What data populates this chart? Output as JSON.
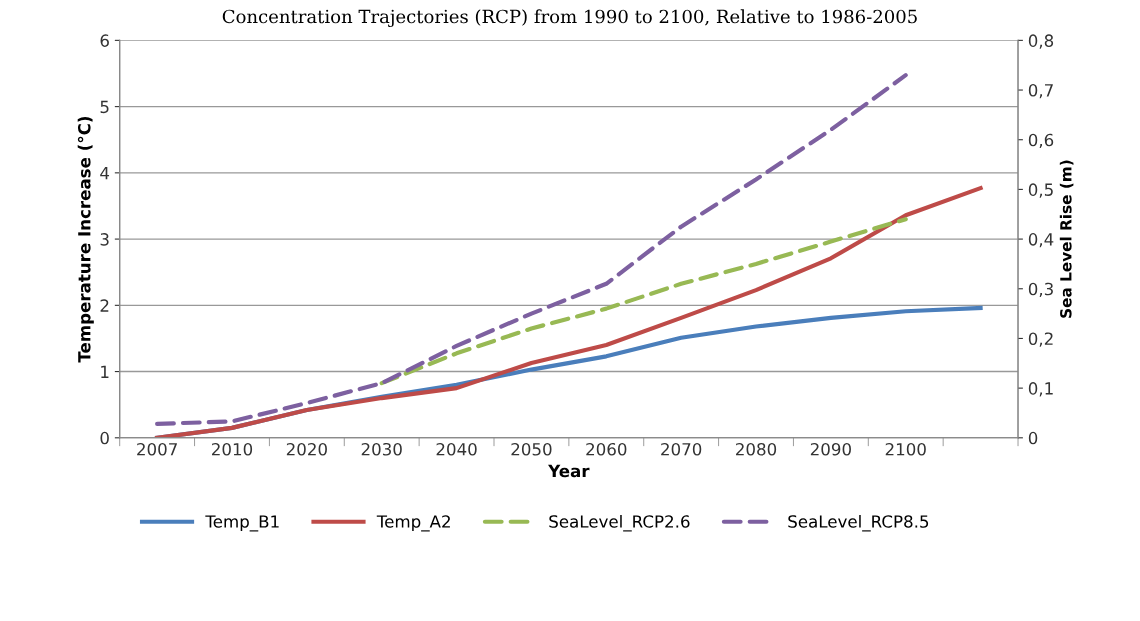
{
  "chart_data": {
    "type": "line",
    "title": "Concentration Trajectories (RCP) from 1990 to 2100, Relative to 1986-2005",
    "xlabel": "Year",
    "ylabel": "Temperature Increase (°C)",
    "y2label": "Sea Level Rise (m)",
    "categories": [
      "2007",
      "2010",
      "2020",
      "2030",
      "2040",
      "2050",
      "2060",
      "2070",
      "2080",
      "2090",
      "2100",
      null
    ],
    "series": [
      {
        "name": "Temp_B1",
        "color": "#4a7ebb",
        "line_style": "solid",
        "values": [
          0,
          0.15,
          0.42,
          0.62,
          0.8,
          1.03,
          1.23,
          1.51,
          1.68,
          1.81,
          1.91,
          1.96
        ]
      },
      {
        "name": "Temp_A2",
        "color": "#be4b48",
        "line_style": "solid",
        "values": [
          0,
          0.15,
          0.42,
          0.6,
          0.75,
          1.13,
          1.4,
          1.81,
          2.23,
          2.71,
          3.36,
          3.77
        ]
      },
      {
        "name": "SeaLevel_RCP2.6",
        "color": "#98b954",
        "line_style": "dashed",
        "axis": "y2",
        "values": [
          null,
          null,
          null,
          0.11,
          0.17,
          0.22,
          0.26,
          0.31,
          0.35,
          0.395,
          0.44,
          null
        ]
      },
      {
        "name": "SeaLevel_RCP8.5",
        "color": "#7d60a0",
        "line_style": "dashed",
        "axis": "y2",
        "values": [
          0.028,
          0.033,
          0.07,
          0.11,
          0.185,
          0.25,
          0.31,
          0.425,
          0.52,
          0.62,
          0.73,
          null
        ]
      }
    ],
    "ylim": [
      0,
      6
    ],
    "yticks": [
      0,
      1,
      2,
      3,
      4,
      5,
      6
    ],
    "y2lim": [
      0,
      0.8
    ],
    "y2ticks": [
      0,
      {
        "value": 0.1,
        "label": "0,1"
      },
      {
        "value": 0.2,
        "label": "0,2"
      },
      {
        "value": 0.3,
        "label": "0,3"
      },
      {
        "value": 0.4,
        "label": "0,4"
      },
      {
        "value": 0.5,
        "label": "0,5"
      },
      {
        "value": 0.6,
        "label": "0,6"
      },
      {
        "value": 0.7,
        "label": "0,7"
      },
      {
        "value": 0.8,
        "label": "0,8"
      }
    ],
    "grid": "y",
    "legend": "bottom",
    "marker": "none"
  }
}
